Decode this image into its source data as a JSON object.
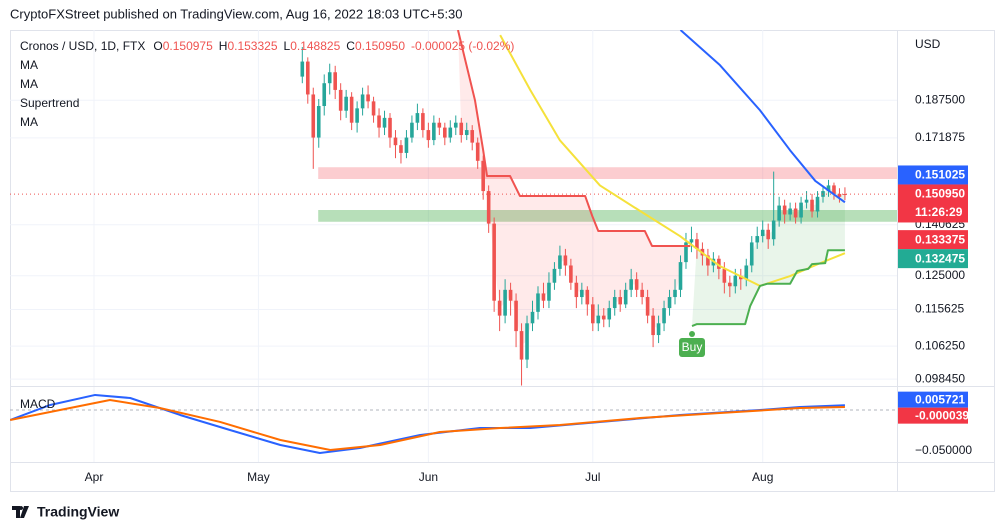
{
  "header": "CryptoFXStreet published on TradingView.com, Aug 16, 2022 18:03 UTC+5:30",
  "footer": "TradingView",
  "chart_data": [
    {
      "type": "candlestick",
      "symbol": "Cronos / USD, 1D, FTX",
      "ohlc_legend": [
        [
          "O",
          "0.150975"
        ],
        [
          "H",
          "0.153325"
        ],
        [
          "L",
          "0.148825"
        ],
        [
          "C",
          "0.150950"
        ]
      ],
      "change": "-0.000025 (-0.02%)",
      "indicator_labels": [
        "MA",
        "MA",
        "Supertrend",
        "MA"
      ],
      "currency": "USD",
      "up_color": "#26a69a",
      "down_color": "#ef5350",
      "x": [
        129,
        130,
        131,
        132,
        133,
        134,
        135,
        136,
        137,
        138,
        139,
        140,
        141,
        142,
        143,
        144,
        145,
        146,
        147,
        148,
        149,
        150,
        151,
        152,
        153,
        154,
        155,
        156,
        157,
        158,
        159,
        160,
        161,
        162,
        163,
        164,
        165,
        166,
        167,
        168,
        169,
        170,
        171,
        172,
        173,
        174,
        175,
        176,
        177,
        178,
        179,
        180,
        181,
        182,
        183,
        184,
        185,
        186,
        187,
        188,
        189,
        190,
        191,
        192,
        193,
        194,
        195,
        196,
        197,
        198,
        199,
        200,
        201,
        202,
        203,
        204,
        205,
        206,
        207,
        208,
        209,
        210,
        211,
        212,
        213,
        214,
        215,
        216,
        217,
        218,
        219,
        220,
        221,
        222,
        223,
        224,
        225,
        226,
        227,
        228
      ],
      "open": [
        0.198,
        0.205,
        0.19,
        0.172,
        0.185,
        0.195,
        0.2,
        0.192,
        0.183,
        0.189,
        0.178,
        0.184,
        0.19,
        0.187,
        0.181,
        0.176,
        0.18,
        0.172,
        0.169,
        0.166,
        0.172,
        0.178,
        0.182,
        0.175,
        0.171,
        0.178,
        0.176,
        0.172,
        0.176,
        0.178,
        0.173,
        0.175,
        0.17,
        0.163,
        0.152,
        0.141,
        0.118,
        0.114,
        0.121,
        0.118,
        0.11,
        0.103,
        0.112,
        0.115,
        0.12,
        0.118,
        0.123,
        0.127,
        0.131,
        0.128,
        0.123,
        0.119,
        0.121,
        0.117,
        0.112,
        0.114,
        0.113,
        0.116,
        0.119,
        0.117,
        0.121,
        0.124,
        0.121,
        0.119,
        0.114,
        0.109,
        0.112,
        0.116,
        0.119,
        0.121,
        0.129,
        0.135,
        0.136,
        0.133,
        0.131,
        0.128,
        0.13,
        0.127,
        0.123,
        0.122,
        0.125,
        0.124,
        0.128,
        0.135,
        0.137,
        0.139,
        0.136,
        0.142,
        0.147,
        0.144,
        0.146,
        0.143,
        0.148,
        0.149,
        0.145,
        0.15,
        0.152,
        0.154,
        0.151,
        0.150975
      ],
      "high": [
        0.212,
        0.207,
        0.193,
        0.188,
        0.199,
        0.204,
        0.203,
        0.195,
        0.192,
        0.191,
        0.187,
        0.193,
        0.194,
        0.189,
        0.184,
        0.183,
        0.182,
        0.175,
        0.171,
        0.175,
        0.181,
        0.186,
        0.184,
        0.178,
        0.181,
        0.18,
        0.178,
        0.179,
        0.181,
        0.18,
        0.178,
        0.177,
        0.172,
        0.165,
        0.154,
        0.143,
        0.121,
        0.124,
        0.123,
        0.12,
        0.112,
        0.114,
        0.118,
        0.122,
        0.123,
        0.126,
        0.129,
        0.134,
        0.133,
        0.13,
        0.125,
        0.123,
        0.122,
        0.119,
        0.117,
        0.116,
        0.118,
        0.121,
        0.121,
        0.123,
        0.127,
        0.126,
        0.123,
        0.121,
        0.116,
        0.114,
        0.118,
        0.121,
        0.124,
        0.131,
        0.138,
        0.14,
        0.138,
        0.135,
        0.133,
        0.132,
        0.131,
        0.129,
        0.125,
        0.127,
        0.127,
        0.13,
        0.137,
        0.14,
        0.142,
        0.141,
        0.159,
        0.15,
        0.149,
        0.148,
        0.148,
        0.15,
        0.152,
        0.151,
        0.152,
        0.154,
        0.156,
        0.155,
        0.153,
        0.153325
      ],
      "low": [
        0.195,
        0.186,
        0.16,
        0.168,
        0.181,
        0.19,
        0.188,
        0.179,
        0.18,
        0.175,
        0.174,
        0.181,
        0.184,
        0.178,
        0.172,
        0.173,
        0.168,
        0.164,
        0.162,
        0.164,
        0.17,
        0.175,
        0.172,
        0.168,
        0.169,
        0.173,
        0.169,
        0.17,
        0.173,
        0.17,
        0.171,
        0.167,
        0.16,
        0.149,
        0.138,
        0.115,
        0.11,
        0.112,
        0.114,
        0.106,
        0.097,
        0.101,
        0.11,
        0.113,
        0.116,
        0.116,
        0.121,
        0.125,
        0.125,
        0.121,
        0.116,
        0.117,
        0.114,
        0.11,
        0.11,
        0.111,
        0.111,
        0.114,
        0.115,
        0.116,
        0.119,
        0.119,
        0.117,
        0.112,
        0.106,
        0.107,
        0.11,
        0.114,
        0.117,
        0.119,
        0.127,
        0.132,
        0.13,
        0.128,
        0.125,
        0.126,
        0.124,
        0.12,
        0.119,
        0.12,
        0.121,
        0.122,
        0.126,
        0.133,
        0.135,
        0.133,
        0.134,
        0.14,
        0.141,
        0.142,
        0.141,
        0.141,
        0.146,
        0.143,
        0.143,
        0.148,
        0.15,
        0.149,
        0.148,
        0.148825
      ],
      "close": [
        0.205,
        0.19,
        0.172,
        0.185,
        0.195,
        0.2,
        0.192,
        0.183,
        0.189,
        0.178,
        0.184,
        0.19,
        0.187,
        0.181,
        0.176,
        0.18,
        0.172,
        0.169,
        0.166,
        0.172,
        0.178,
        0.182,
        0.175,
        0.171,
        0.178,
        0.176,
        0.172,
        0.176,
        0.178,
        0.173,
        0.175,
        0.17,
        0.163,
        0.152,
        0.141,
        0.118,
        0.114,
        0.121,
        0.118,
        0.11,
        0.103,
        0.112,
        0.115,
        0.12,
        0.118,
        0.123,
        0.127,
        0.131,
        0.128,
        0.123,
        0.119,
        0.121,
        0.117,
        0.112,
        0.114,
        0.113,
        0.116,
        0.119,
        0.117,
        0.121,
        0.124,
        0.121,
        0.119,
        0.114,
        0.109,
        0.112,
        0.116,
        0.119,
        0.121,
        0.129,
        0.135,
        0.136,
        0.133,
        0.131,
        0.128,
        0.13,
        0.127,
        0.123,
        0.122,
        0.125,
        0.124,
        0.128,
        0.135,
        0.137,
        0.139,
        0.136,
        0.142,
        0.147,
        0.144,
        0.146,
        0.143,
        0.148,
        0.149,
        0.145,
        0.15,
        0.152,
        0.154,
        0.151,
        0.15,
        0.15095
      ],
      "xlim": [
        75.67,
        237.5
      ],
      "xticks": [
        {
          "value": 91,
          "label": "Apr"
        },
        {
          "value": 121,
          "label": "May"
        },
        {
          "value": 152,
          "label": "Jun"
        },
        {
          "value": 182,
          "label": "Jul"
        },
        {
          "value": 213,
          "label": "Aug"
        }
      ],
      "ylim": [
        0.0969,
        0.2205
      ],
      "log_scale": true,
      "grid": true,
      "yticks": [
        {
          "value": 0.1875,
          "label": "0.187500"
        },
        {
          "value": 0.171875,
          "label": "0.171875"
        },
        {
          "value": 0.140625,
          "label": "0.140625"
        },
        {
          "value": 0.125,
          "label": "0.125000"
        },
        {
          "value": 0.115625,
          "label": "0.115625"
        },
        {
          "value": 0.10625,
          "label": "0.106250"
        },
        {
          "value": 0.09845,
          "label": "0.098450"
        }
      ],
      "zones": [
        {
          "from": 131.9,
          "low": 0.1563,
          "high": 0.1606,
          "color": "rgba(242,54,69,0.25)"
        },
        {
          "from": 131.9,
          "low": 0.1416,
          "high": 0.1455,
          "color": "rgba(76,175,80,0.4)"
        }
      ],
      "series": [
        {
          "color": "#2962ff",
          "x": [
            198,
            205.2,
            212.5,
            218,
            222.6,
            228
          ],
          "values": [
            0.2205,
            0.2033,
            0.1832,
            0.167,
            0.1556,
            0.1481
          ]
        },
        {
          "color": "#f5e13b",
          "x": [
            165.1,
            170.6,
            176,
            183.3,
            190.6,
            197.9,
            205.2,
            212.5,
            218,
            223.5,
            228
          ],
          "values": [
            0.2179,
            0.1919,
            0.1709,
            0.154,
            0.1452,
            0.137,
            0.1278,
            0.1221,
            0.1249,
            0.1287,
            0.1317
          ]
        },
        {
          "color": "#f05350",
          "fill": "rgba(255,82,82,0.12)",
          "x": [
            157.4,
            160.5,
            162,
            162.7,
            166.9,
            168.7,
            180.6,
            181.9,
            183,
            191.5,
            192.8,
            199.8
          ],
          "values": [
            0.2205,
            0.1875,
            0.167,
            0.1574,
            0.1574,
            0.1503,
            0.1503,
            0.1435,
            0.1386,
            0.1386,
            0.1339,
            0.1339
          ]
        },
        {
          "color": "#4caf50",
          "fill": "rgba(76,175,80,0.12)",
          "x": [
            200.1,
            201,
            209.8,
            210.7,
            212.5,
            213.8,
            218,
            219.3,
            221.3,
            222,
            224.4,
            224.9,
            228
          ],
          "values": [
            0.1113,
            0.1118,
            0.1118,
            0.1165,
            0.1221,
            0.1227,
            0.1227,
            0.1264,
            0.127,
            0.1284,
            0.1287,
            0.1326,
            0.1326
          ]
        }
      ],
      "signals": [
        {
          "label": "Buy",
          "x": 200.1,
          "value": 0.1113,
          "color": "#4caf50"
        }
      ],
      "price_labels": [
        {
          "value": 0.151025,
          "label": "0.151025",
          "color": "#2962ff"
        },
        {
          "value": 0.15095,
          "label": "0.150950",
          "timer": "11:26:29",
          "color": "#f23645"
        },
        {
          "value": 0.133375,
          "label": "0.133375",
          "color": "#f23645"
        },
        {
          "value": 0.132475,
          "label": "0.132475",
          "color": "#22ab94"
        }
      ]
    },
    {
      "type": "line",
      "title": "MACD",
      "xlim": [
        75.67,
        237.5
      ],
      "ylim": [
        -0.0634,
        0.028
      ],
      "yticks": [
        {
          "value": -0.05,
          "label": "−0.050000"
        }
      ],
      "series": [
        {
          "color": "#2962ff",
          "x": [
            75.7,
            83,
            91.2,
            97.6,
            106.7,
            115.8,
            125,
            132.2,
            139.5,
            150.5,
            161.4,
            170.6,
            183.3,
            197.9,
            212.5,
            219.8,
            228
          ],
          "values": [
            -0.0122,
            0.0061,
            0.0183,
            0.0146,
            -0.0061,
            -0.0244,
            -0.0427,
            -0.0524,
            -0.0463,
            -0.0305,
            -0.022,
            -0.022,
            -0.0146,
            -0.0061,
            0,
            0.0037,
            0.0057
          ]
        },
        {
          "color": "#ff6d00",
          "x": [
            75.7,
            84.8,
            93.9,
            103,
            114,
            125,
            134.1,
            143.2,
            154.1,
            165.1,
            176,
            190.6,
            205.2,
            219.8,
            228
          ],
          "values": [
            -0.0122,
            0,
            0.0122,
            0.0024,
            -0.0146,
            -0.0366,
            -0.0488,
            -0.0427,
            -0.0268,
            -0.022,
            -0.0183,
            -0.0098,
            -0.0037,
            0.0024,
            0.0036
          ]
        }
      ],
      "price_labels": [
        {
          "value": 0.005721,
          "label": "0.005721",
          "color": "#2962ff"
        },
        {
          "value": -3.9e-05,
          "label": "-0.000039",
          "color": "#f23645"
        }
      ]
    }
  ]
}
